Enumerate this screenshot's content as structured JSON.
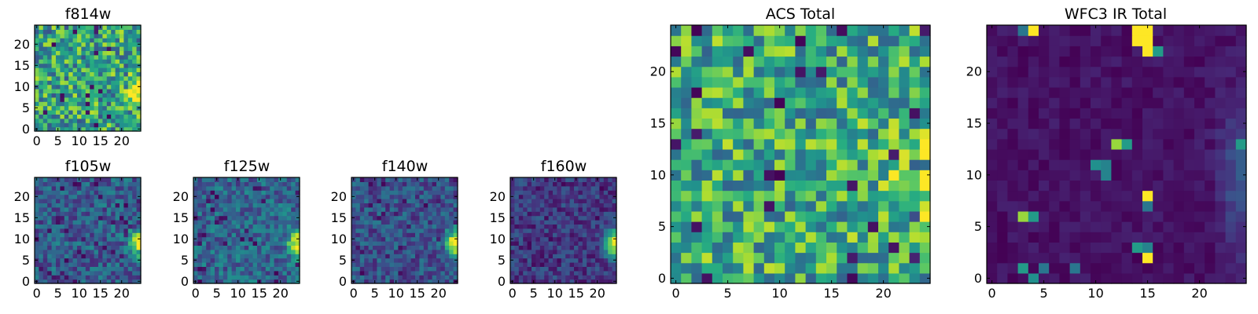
{
  "chart_data": [
    {
      "type": "heatmap",
      "title": "f814w",
      "x_range": [
        -0.5,
        24.5
      ],
      "y_range": [
        -0.5,
        24.5
      ],
      "xticks": [
        0,
        5,
        10,
        15,
        20
      ],
      "yticks": [
        0,
        5,
        10,
        15,
        20
      ],
      "xticklabels": [
        "0",
        "5",
        "10",
        "15",
        "20"
      ],
      "yticklabels": [
        "0",
        "5",
        "10",
        "15",
        "20"
      ],
      "grid_size": 25,
      "pixel_block": 1,
      "colormap": "viridis",
      "noise": {
        "base": 0.58,
        "amp": 0.32,
        "seed": 11,
        "low_outliers": 0.03
      },
      "blobs": [
        {
          "x": 24,
          "y": 9,
          "sx": 1.5,
          "sy": 2.5,
          "amp": 0.45
        }
      ]
    },
    {
      "type": "heatmap",
      "title": "f105w",
      "x_range": [
        -0.5,
        24.5
      ],
      "y_range": [
        -0.5,
        24.5
      ],
      "xticks": [
        0,
        5,
        10,
        15,
        20
      ],
      "yticks": [
        0,
        5,
        10,
        15,
        20
      ],
      "xticklabels": [
        "0",
        "5",
        "10",
        "15",
        "20"
      ],
      "yticklabels": [
        "0",
        "5",
        "10",
        "15",
        "20"
      ],
      "grid_size": 25,
      "pixel_block": 1,
      "colormap": "viridis",
      "noise": {
        "base": 0.3,
        "amp": 0.18,
        "seed": 23,
        "low_outliers": 0.05
      },
      "blobs": [
        {
          "x": 24,
          "y": 9,
          "sx": 1.5,
          "sy": 2.2,
          "amp": 0.75
        }
      ]
    },
    {
      "type": "heatmap",
      "title": "f125w",
      "x_range": [
        -0.5,
        24.5
      ],
      "y_range": [
        -0.5,
        24.5
      ],
      "xticks": [
        0,
        5,
        10,
        15,
        20
      ],
      "yticks": [
        0,
        5,
        10,
        15,
        20
      ],
      "xticklabels": [
        "0",
        "5",
        "10",
        "15",
        "20"
      ],
      "yticklabels": [
        "0",
        "5",
        "10",
        "15",
        "20"
      ],
      "grid_size": 25,
      "pixel_block": 1,
      "colormap": "viridis",
      "noise": {
        "base": 0.33,
        "amp": 0.18,
        "seed": 37,
        "low_outliers": 0.05
      },
      "blobs": [
        {
          "x": 24,
          "y": 9,
          "sx": 1.5,
          "sy": 2.2,
          "amp": 0.72
        }
      ]
    },
    {
      "type": "heatmap",
      "title": "f140w",
      "x_range": [
        -0.5,
        24.5
      ],
      "y_range": [
        -0.5,
        24.5
      ],
      "xticks": [
        0,
        5,
        10,
        15,
        20
      ],
      "yticks": [
        0,
        5,
        10,
        15,
        20
      ],
      "xticklabels": [
        "0",
        "5",
        "10",
        "15",
        "20"
      ],
      "yticklabels": [
        "0",
        "5",
        "10",
        "15",
        "20"
      ],
      "grid_size": 25,
      "pixel_block": 1,
      "colormap": "viridis",
      "noise": {
        "base": 0.26,
        "amp": 0.16,
        "seed": 41,
        "low_outliers": 0.05
      },
      "blobs": [
        {
          "x": 24,
          "y": 9,
          "sx": 1.5,
          "sy": 2.2,
          "amp": 0.78
        }
      ]
    },
    {
      "type": "heatmap",
      "title": "f160w",
      "x_range": [
        -0.5,
        24.5
      ],
      "y_range": [
        -0.5,
        24.5
      ],
      "xticks": [
        0,
        5,
        10,
        15,
        20
      ],
      "yticks": [
        0,
        5,
        10,
        15,
        20
      ],
      "xticklabels": [
        "0",
        "5",
        "10",
        "15",
        "20"
      ],
      "yticklabels": [
        "0",
        "5",
        "10",
        "15",
        "20"
      ],
      "grid_size": 25,
      "pixel_block": 1,
      "colormap": "viridis",
      "noise": {
        "base": 0.18,
        "amp": 0.14,
        "seed": 53,
        "low_outliers": 0.06
      },
      "blobs": [
        {
          "x": 24,
          "y": 9,
          "sx": 1.6,
          "sy": 2.3,
          "amp": 0.85
        }
      ]
    },
    {
      "type": "heatmap",
      "title": "ACS Total",
      "x_range": [
        -0.5,
        24.5
      ],
      "y_range": [
        -0.5,
        24.5
      ],
      "xticks": [
        0,
        5,
        10,
        15,
        20
      ],
      "yticks": [
        0,
        5,
        10,
        15,
        20
      ],
      "xticklabels": [
        "0",
        "5",
        "10",
        "15",
        "20"
      ],
      "yticklabels": [
        "0",
        "5",
        "10",
        "15",
        "20"
      ],
      "grid_size": 25,
      "pixel_block": 1,
      "colormap": "viridis",
      "noise": {
        "base": 0.62,
        "amp": 0.3,
        "seed": 67,
        "low_outliers": 0.04
      },
      "blobs": [
        {
          "x": 24,
          "y": 9,
          "sx": 2.0,
          "sy": 3.0,
          "amp": 0.35
        }
      ]
    },
    {
      "type": "heatmap",
      "title": "WFC3 IR Total",
      "x_range": [
        -0.5,
        24.5
      ],
      "y_range": [
        -0.5,
        24.5
      ],
      "xticks": [
        0,
        5,
        10,
        15,
        20
      ],
      "yticks": [
        0,
        5,
        10,
        15,
        20
      ],
      "xticklabels": [
        "0",
        "5",
        "10",
        "15",
        "20"
      ],
      "yticklabels": [
        "0",
        "5",
        "10",
        "15",
        "20"
      ],
      "grid_size": 25,
      "pixel_block": 1,
      "colormap": "viridis",
      "noise": {
        "base": 0.05,
        "amp": 0.05,
        "seed": 79,
        "low_outliers": 0.0
      },
      "blobs": [
        {
          "x": 24,
          "y": 10,
          "sx": 1.4,
          "sy": 5.0,
          "amp": 0.22
        }
      ],
      "hot_pixels": [
        {
          "x": 14,
          "y": 23,
          "v": 1.0
        },
        {
          "x": 15,
          "y": 23,
          "v": 1.0
        },
        {
          "x": 14,
          "y": 24,
          "v": 1.0
        },
        {
          "x": 15,
          "y": 24,
          "v": 1.0
        },
        {
          "x": 15,
          "y": 22,
          "v": 1.0
        },
        {
          "x": 16,
          "y": 22,
          "v": 0.55
        },
        {
          "x": 4,
          "y": 24,
          "v": 1.0
        },
        {
          "x": 3,
          "y": 24,
          "v": 0.4
        },
        {
          "x": 12,
          "y": 13,
          "v": 0.85
        },
        {
          "x": 13,
          "y": 13,
          "v": 0.55
        },
        {
          "x": 10,
          "y": 11,
          "v": 0.5
        },
        {
          "x": 11,
          "y": 11,
          "v": 0.45
        },
        {
          "x": 11,
          "y": 10,
          "v": 0.45
        },
        {
          "x": 15,
          "y": 8,
          "v": 1.0
        },
        {
          "x": 15,
          "y": 7,
          "v": 0.4
        },
        {
          "x": 3,
          "y": 6,
          "v": 0.85
        },
        {
          "x": 4,
          "y": 6,
          "v": 0.55
        },
        {
          "x": 14,
          "y": 3,
          "v": 0.55
        },
        {
          "x": 15,
          "y": 3,
          "v": 0.45
        },
        {
          "x": 15,
          "y": 2,
          "v": 1.0
        },
        {
          "x": 3,
          "y": 1,
          "v": 0.55
        },
        {
          "x": 5,
          "y": 1,
          "v": 0.4
        },
        {
          "x": 8,
          "y": 1,
          "v": 0.4
        },
        {
          "x": 4,
          "y": 0,
          "v": 0.5
        },
        {
          "x": 24,
          "y": 13,
          "v": 0.55
        }
      ]
    }
  ]
}
